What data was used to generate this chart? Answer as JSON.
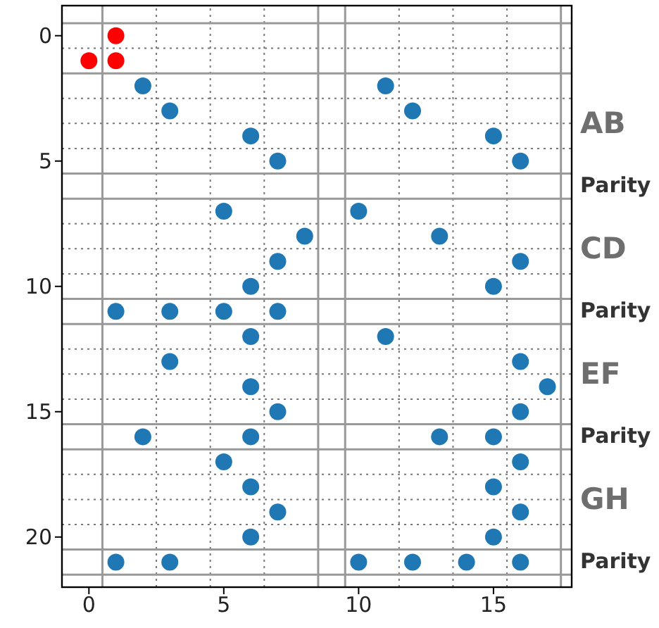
{
  "chart_data": {
    "type": "scatter",
    "xlim": [
      -1,
      17.9
    ],
    "ylim": [
      22,
      -1.2
    ],
    "xticks": [
      0,
      5,
      10,
      15
    ],
    "yticks": [
      0,
      5,
      10,
      15,
      20
    ],
    "grid": false,
    "marker": "circle",
    "series": [
      {
        "color": "#ff0000",
        "x": [
          1,
          0,
          1
        ],
        "values": [
          0,
          1,
          1
        ]
      },
      {
        "color": "#1f77b4",
        "x": [
          2,
          11,
          3,
          12,
          6,
          15,
          7,
          16,
          5,
          10,
          8,
          13,
          7,
          16,
          6,
          15,
          1,
          3,
          5,
          7,
          6,
          11,
          3,
          16,
          6,
          17,
          7,
          16,
          2,
          6,
          13,
          15,
          5,
          16,
          6,
          15,
          7,
          16,
          6,
          15,
          1,
          3,
          10,
          12,
          14,
          16
        ],
        "values": [
          2,
          2,
          3,
          3,
          4,
          4,
          5,
          5,
          7,
          7,
          8,
          8,
          9,
          9,
          10,
          10,
          11,
          11,
          11,
          11,
          12,
          12,
          13,
          13,
          14,
          14,
          15,
          15,
          16,
          16,
          16,
          16,
          17,
          17,
          18,
          18,
          19,
          19,
          20,
          20,
          21,
          21,
          21,
          21,
          21,
          21
        ]
      }
    ],
    "ref_lines": [
      {
        "axis": "x",
        "value": 0.5,
        "color": "#999999",
        "line_style": "solid"
      },
      {
        "axis": "x",
        "value": 8.5,
        "color": "#999999",
        "line_style": "solid"
      },
      {
        "axis": "x",
        "value": 9.5,
        "color": "#999999",
        "line_style": "solid"
      },
      {
        "axis": "x",
        "value": 17.5,
        "color": "#999999",
        "line_style": "solid"
      },
      {
        "axis": "x",
        "value": 2.5,
        "color": "#777777",
        "line_style": "dotted"
      },
      {
        "axis": "x",
        "value": 4.5,
        "color": "#777777",
        "line_style": "dotted"
      },
      {
        "axis": "x",
        "value": 6.5,
        "color": "#777777",
        "line_style": "dotted"
      },
      {
        "axis": "x",
        "value": 11.5,
        "color": "#777777",
        "line_style": "dotted"
      },
      {
        "axis": "x",
        "value": 13.5,
        "color": "#777777",
        "line_style": "dotted"
      },
      {
        "axis": "x",
        "value": 15.5,
        "color": "#777777",
        "line_style": "dotted"
      },
      {
        "axis": "y",
        "value": -0.5,
        "color": "#999999",
        "line_style": "solid"
      },
      {
        "axis": "y",
        "value": 1.5,
        "color": "#999999",
        "line_style": "solid"
      },
      {
        "axis": "y",
        "value": 5.5,
        "color": "#999999",
        "line_style": "solid"
      },
      {
        "axis": "y",
        "value": 6.5,
        "color": "#999999",
        "line_style": "solid"
      },
      {
        "axis": "y",
        "value": 10.5,
        "color": "#999999",
        "line_style": "solid"
      },
      {
        "axis": "y",
        "value": 11.5,
        "color": "#999999",
        "line_style": "solid"
      },
      {
        "axis": "y",
        "value": 15.5,
        "color": "#999999",
        "line_style": "solid"
      },
      {
        "axis": "y",
        "value": 16.5,
        "color": "#999999",
        "line_style": "solid"
      },
      {
        "axis": "y",
        "value": 20.5,
        "color": "#999999",
        "line_style": "solid"
      },
      {
        "axis": "y",
        "value": 21.5,
        "color": "#999999",
        "line_style": "solid"
      },
      {
        "axis": "y",
        "value": 0.5,
        "color": "#777777",
        "line_style": "dotted"
      },
      {
        "axis": "y",
        "value": 2.5,
        "color": "#777777",
        "line_style": "dotted"
      },
      {
        "axis": "y",
        "value": 3.5,
        "color": "#777777",
        "line_style": "dotted"
      },
      {
        "axis": "y",
        "value": 4.5,
        "color": "#777777",
        "line_style": "dotted"
      },
      {
        "axis": "y",
        "value": 7.5,
        "color": "#777777",
        "line_style": "dotted"
      },
      {
        "axis": "y",
        "value": 8.5,
        "color": "#777777",
        "line_style": "dotted"
      },
      {
        "axis": "y",
        "value": 9.5,
        "color": "#777777",
        "line_style": "dotted"
      },
      {
        "axis": "y",
        "value": 12.5,
        "color": "#777777",
        "line_style": "dotted"
      },
      {
        "axis": "y",
        "value": 13.5,
        "color": "#777777",
        "line_style": "dotted"
      },
      {
        "axis": "y",
        "value": 14.5,
        "color": "#777777",
        "line_style": "dotted"
      },
      {
        "axis": "y",
        "value": 17.5,
        "color": "#777777",
        "line_style": "dotted"
      },
      {
        "axis": "y",
        "value": 18.5,
        "color": "#777777",
        "line_style": "dotted"
      },
      {
        "axis": "y",
        "value": 19.5,
        "color": "#777777",
        "line_style": "dotted"
      }
    ],
    "annotations": [
      "AB",
      "Parity",
      "CD",
      "Parity",
      "EF",
      "Parity",
      "GH",
      "Parity"
    ]
  }
}
